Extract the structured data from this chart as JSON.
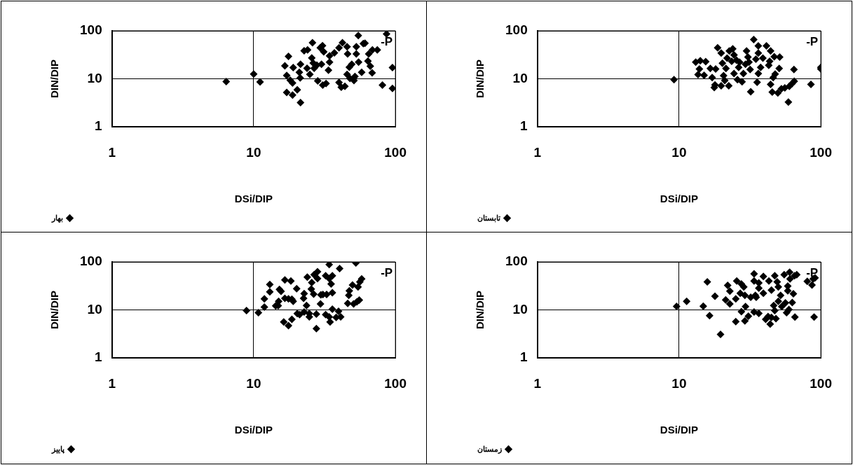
{
  "chart_data": [
    {
      "type": "scatter",
      "xlabel": "DSi/DIP",
      "ylabel": "DIN/DIP",
      "xlim": [
        1,
        100
      ],
      "ylim": [
        1,
        100
      ],
      "xticks": [
        1,
        10,
        100
      ],
      "yticks": [
        1,
        10,
        100
      ],
      "log": "xy",
      "grid": true,
      "legend": "bottom left",
      "marker": "diamond",
      "annotations": [
        "-P"
      ],
      "series": [
        {
          "name": "بهار",
          "color": "#000000",
          "x": [
            6.4,
            10,
            11.1,
            16.6,
            17.6,
            17.1,
            18.1,
            18.8,
            17.1,
            18.8,
            20.3,
            21.4,
            19,
            21.4,
            21,
            21.3,
            23.8,
            22.7,
            24,
            26,
            25.7,
            24.9,
            26.3,
            26.7,
            27.9,
            28.3,
            29.5,
            30.6,
            31.2,
            30.1,
            30.7,
            32.4,
            33.7,
            34.3,
            34.3,
            37.1,
            40,
            42.3,
            40,
            41.5,
            44,
            45.6,
            46,
            45.6,
            47.3,
            47.8,
            49.2,
            51,
            51.8,
            53,
            53,
            54.7,
            55,
            57.8,
            59.4,
            61,
            64,
            64.8,
            66.5,
            68.5,
            68.8,
            74.5,
            81,
            86.6,
            95.3,
            95.3
          ],
          "values": [
            8.8,
            12.6,
            8.6,
            18.7,
            29.4,
            11.8,
            9.4,
            8.2,
            5.2,
            4.6,
            5.9,
            3.2,
            17.1,
            20.2,
            13.7,
            10.5,
            16.6,
            38.3,
            40.2,
            56.6,
            27.2,
            12.4,
            21.3,
            16.6,
            19.3,
            9.1,
            44.4,
            48.9,
            36.5,
            20.2,
            7.4,
            8,
            15.1,
            22.3,
            30,
            34.7,
            44.4,
            56.6,
            8.4,
            6.7,
            7,
            46.6,
            33,
            12.4,
            17.5,
            10.2,
            20.2,
            9.2,
            11.2,
            46.6,
            33,
            79.8,
            22.3,
            13.7,
            54,
            55,
            23.4,
            33,
            18.4,
            13.3,
            40.2,
            40.2,
            7.4,
            86.3,
            17.1,
            6.3
          ]
        }
      ]
    },
    {
      "type": "scatter",
      "xlabel": "DSi/DIP",
      "ylabel": "DIN/DIP",
      "xlim": [
        1,
        100
      ],
      "ylim": [
        1,
        100
      ],
      "xticks": [
        1,
        10,
        100
      ],
      "yticks": [
        1,
        10,
        100
      ],
      "log": "xy",
      "grid": true,
      "legend": "bottom left",
      "marker": "diamond",
      "annotations": [
        "-P"
      ],
      "series": [
        {
          "name": "تابستان",
          "color": "#000000",
          "x": [
            9.2,
            13.1,
            14.1,
            15.4,
            13.9,
            13.6,
            15,
            16.6,
            18.1,
            17.1,
            17.9,
            17.7,
            19.8,
            18.7,
            19.8,
            20.2,
            20.6,
            21,
            21.4,
            21.8,
            22.4,
            22.6,
            23.5,
            23.9,
            24.4,
            24.4,
            25.4,
            25.8,
            26.3,
            26.7,
            27.8,
            28.4,
            29.4,
            29.9,
            30.6,
            31.1,
            31.7,
            32,
            33.6,
            34.8,
            35.5,
            36.2,
            36.2,
            36.2,
            37.6,
            39,
            41.3,
            42.9,
            43.5,
            44.2,
            44.2,
            45.4,
            46.1,
            46.9,
            47.6,
            50.8,
            51.2,
            49.7,
            52.7,
            55.7,
            59,
            59.9,
            62.5,
            64.9,
            64.6,
            85.1,
            100,
            100
          ],
          "values": [
            9.6,
            22.2,
            23.8,
            22.9,
            16,
            12.3,
            11.9,
            16.5,
            16,
            10.6,
            7.5,
            6.6,
            7.2,
            44.2,
            34.5,
            21.1,
            11.7,
            9.2,
            16.5,
            27,
            7.2,
            38.1,
            23.3,
            42,
            31.3,
            12.9,
            24.5,
            9.6,
            17.3,
            22.2,
            8.7,
            12.9,
            20.1,
            38.1,
            28.4,
            22.2,
            15.7,
            5.4,
            65.5,
            25.7,
            8.5,
            48.7,
            34.5,
            12.9,
            17.3,
            27,
            48.7,
            19.1,
            23.3,
            38.1,
            7.7,
            5.3,
            10.6,
            29,
            12.6,
            16.5,
            28.4,
            5.1,
            6.2,
            6.5,
            3.3,
            7,
            7.9,
            8.9,
            15.7,
            7.7,
            17.3,
            16
          ]
        }
      ]
    },
    {
      "type": "scatter",
      "xlabel": "DSi/DIP",
      "ylabel": "DIN/DIP",
      "xlim": [
        1,
        100
      ],
      "ylim": [
        1,
        100
      ],
      "xticks": [
        1,
        10,
        100
      ],
      "yticks": [
        1,
        10,
        100
      ],
      "log": "xy",
      "grid": true,
      "legend": "bottom left",
      "marker": "diamond",
      "annotations": [
        "-P"
      ],
      "series": [
        {
          "name": "پاييز",
          "color": "#000000",
          "x": [
            8.9,
            10.8,
            11.9,
            11.9,
            13,
            13,
            14.3,
            14.9,
            15,
            15.2,
            15.6,
            16.3,
            16.6,
            16.6,
            17.6,
            17.6,
            18.3,
            18.6,
            18.6,
            19,
            20.1,
            20.3,
            21.1,
            22.5,
            22.7,
            22.7,
            23.6,
            23.9,
            24.7,
            24.7,
            25.5,
            25.7,
            26.5,
            26.7,
            27.7,
            27.7,
            28.2,
            28.2,
            29.6,
            29.8,
            30.8,
            32.2,
            32.2,
            32.7,
            34.1,
            34.1,
            34.1,
            34.6,
            35.2,
            35.9,
            35.9,
            35.9,
            38.2,
            39.7,
            40.4,
            41.1,
            46.1,
            46.9,
            47.3,
            49.8,
            50.7,
            52.6,
            53.5,
            54.5,
            55.6,
            56.1,
            57.8
          ],
          "values": [
            9.7,
            8.8,
            11.5,
            17,
            23.9,
            34,
            12.2,
            12.3,
            15.1,
            26.7,
            24.5,
            5.6,
            42.3,
            17.5,
            4.7,
            17,
            40.2,
            16.7,
            6.4,
            15.1,
            27.8,
            8.4,
            8,
            17.5,
            21.9,
            9.1,
            12.4,
            48,
            8.4,
            7.2,
            27.2,
            37.2,
            21.3,
            54,
            8.2,
            4.1,
            62.5,
            45.2,
            13.4,
            20.7,
            21,
            8,
            51.4,
            21,
            88,
            45.2,
            7.2,
            5.6,
            34.7,
            51.4,
            22.8,
            10.4,
            7,
            9.4,
            72.5,
            7.2,
            13.7,
            20.2,
            25.1,
            33,
            13.4,
            95.3,
            14.8,
            30,
            16.1,
            38.3,
            44.4
          ]
        }
      ]
    },
    {
      "type": "scatter",
      "xlabel": "DSi/DIP",
      "ylabel": "DIN/DIP",
      "xlim": [
        1,
        100
      ],
      "ylim": [
        1,
        100
      ],
      "xticks": [
        1,
        10,
        100
      ],
      "yticks": [
        1,
        10,
        100
      ],
      "log": "xy",
      "grid": true,
      "legend": "bottom left",
      "marker": "diamond",
      "annotations": [
        "-P"
      ],
      "series": [
        {
          "name": "زمستان",
          "color": "#000000",
          "x": [
            9.6,
            11.3,
            14.8,
            15.8,
            16.4,
            17.9,
            19.6,
            21.3,
            22,
            22.8,
            22.8,
            25.1,
            25.1,
            25.5,
            27,
            27.5,
            27.5,
            28.6,
            29.1,
            29.4,
            29.1,
            30.8,
            32,
            33.8,
            33.8,
            34.5,
            35,
            33.8,
            36.5,
            36.5,
            36.5,
            39.3,
            39.3,
            40.8,
            42.4,
            43,
            43.9,
            44.8,
            44.8,
            46.5,
            47.3,
            47.3,
            48.2,
            49.2,
            50.1,
            50.1,
            52,
            53,
            55.1,
            56.2,
            57.3,
            58.4,
            58.4,
            59.5,
            60.2,
            60.6,
            62.8,
            64,
            65.2,
            65.6,
            67.6,
            80.2,
            86.6,
            88.3,
            91,
            89.6
          ],
          "values": [
            11.9,
            15.1,
            12,
            38.3,
            7.6,
            19.3,
            3.1,
            16.2,
            32.4,
            24.6,
            13.4,
            17,
            5.7,
            40.2,
            22.3,
            34.7,
            9.2,
            30,
            20.2,
            11.8,
            5.9,
            7.4,
            18.4,
            56.6,
            40.2,
            20.2,
            18.4,
            9.1,
            36.5,
            28.5,
            8.5,
            49.9,
            22.3,
            6.4,
            7.3,
            40.2,
            5.1,
            25.9,
            7,
            12.4,
            51.4,
            9.7,
            6.6,
            38.3,
            30,
            15.1,
            20.2,
            11.8,
            54,
            14,
            8.8,
            31.5,
            25.1,
            10.2,
            60.7,
            44.4,
            14.3,
            21.7,
            51.4,
            7.1,
            54,
            39.4,
            33,
            44.4,
            46.6,
            7.1
          ]
        }
      ]
    }
  ]
}
